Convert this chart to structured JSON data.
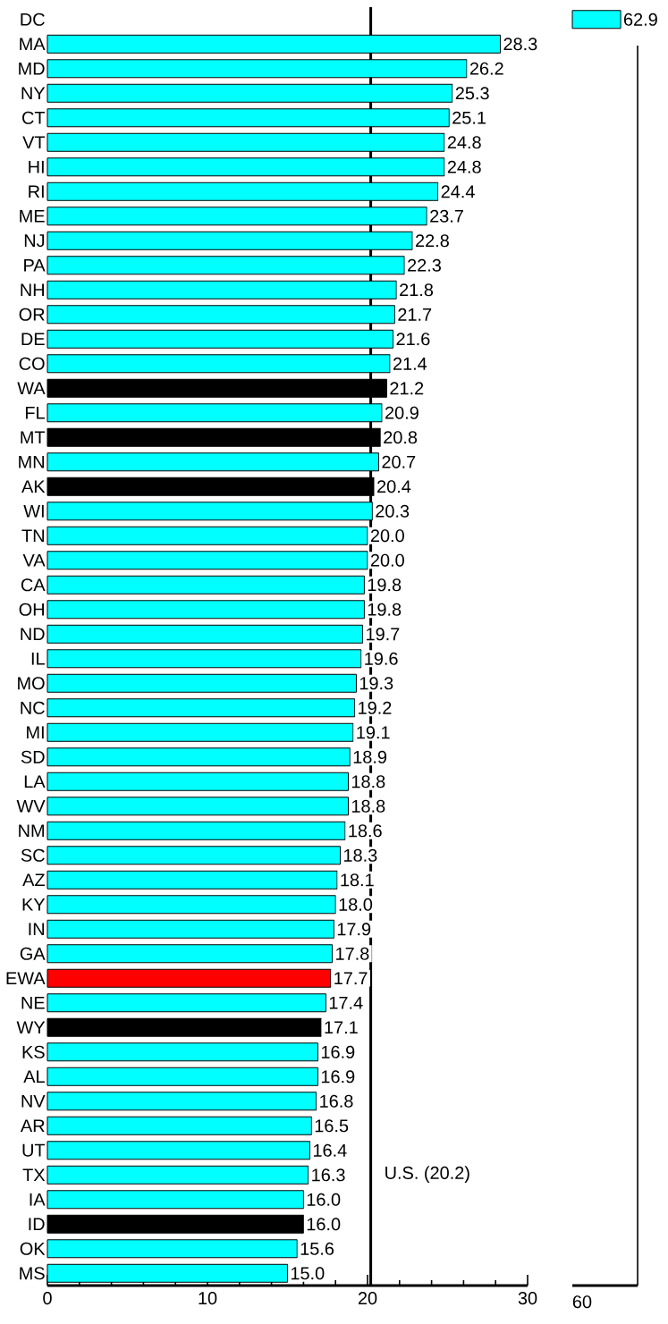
{
  "chart_data": [
    {
      "type": "bar",
      "orientation": "horizontal",
      "categories": [
        "DC",
        "MA",
        "MD",
        "NY",
        "CT",
        "VT",
        "HI",
        "RI",
        "ME",
        "NJ",
        "PA",
        "NH",
        "OR",
        "DE",
        "CO",
        "WA",
        "FL",
        "MT",
        "MN",
        "AK",
        "WI",
        "TN",
        "VA",
        "CA",
        "OH",
        "ND",
        "IL",
        "MO",
        "NC",
        "MI",
        "SD",
        "LA",
        "WV",
        "NM",
        "SC",
        "AZ",
        "KY",
        "IN",
        "GA",
        "EWA",
        "NE",
        "WY",
        "KS",
        "AL",
        "NV",
        "AR",
        "UT",
        "TX",
        "IA",
        "ID",
        "OK",
        "MS"
      ],
      "values": [
        null,
        28.3,
        26.2,
        25.3,
        25.1,
        24.8,
        24.8,
        24.4,
        23.7,
        22.8,
        22.3,
        21.8,
        21.7,
        21.6,
        21.4,
        21.2,
        20.9,
        20.8,
        20.7,
        20.4,
        20.3,
        20.0,
        20.0,
        19.8,
        19.8,
        19.7,
        19.6,
        19.3,
        19.2,
        19.1,
        18.9,
        18.8,
        18.8,
        18.6,
        18.3,
        18.1,
        18.0,
        17.9,
        17.8,
        17.7,
        17.4,
        17.1,
        16.9,
        16.9,
        16.8,
        16.5,
        16.4,
        16.3,
        16.0,
        16.0,
        15.6,
        15.0
      ],
      "value_labels": [
        null,
        "28.3",
        "26.2",
        "25.3",
        "25.1",
        "24.8",
        "24.8",
        "24.4",
        "23.7",
        "22.8",
        "22.3",
        "21.8",
        "21.7",
        "21.6",
        "21.4",
        "21.2",
        "20.9",
        "20.8",
        "20.7",
        "20.4",
        "20.3",
        "20.0",
        "20.0",
        "19.8",
        "19.8",
        "19.7",
        "19.6",
        "19.3",
        "19.2",
        "19.1",
        "18.9",
        "18.8",
        "18.8",
        "18.6",
        "18.3",
        "18.1",
        "18.0",
        "17.9",
        "17.8",
        "17.7",
        "17.4",
        "17.1",
        "16.9",
        "16.9",
        "16.8",
        "16.5",
        "16.4",
        "16.3",
        "16.0",
        "16.0",
        "15.6",
        "15.0"
      ],
      "colors": [
        "#00ffff",
        "#00ffff",
        "#00ffff",
        "#00ffff",
        "#00ffff",
        "#00ffff",
        "#00ffff",
        "#00ffff",
        "#00ffff",
        "#00ffff",
        "#00ffff",
        "#00ffff",
        "#00ffff",
        "#00ffff",
        "#00ffff",
        "#000000",
        "#00ffff",
        "#000000",
        "#00ffff",
        "#000000",
        "#00ffff",
        "#00ffff",
        "#00ffff",
        "#00ffff",
        "#00ffff",
        "#00ffff",
        "#00ffff",
        "#00ffff",
        "#00ffff",
        "#00ffff",
        "#00ffff",
        "#00ffff",
        "#00ffff",
        "#00ffff",
        "#00ffff",
        "#00ffff",
        "#00ffff",
        "#00ffff",
        "#00ffff",
        "#ff0000",
        "#00ffff",
        "#000000",
        "#00ffff",
        "#00ffff",
        "#00ffff",
        "#00ffff",
        "#00ffff",
        "#00ffff",
        "#00ffff",
        "#000000",
        "#00ffff",
        "#00ffff"
      ],
      "xlim": [
        0,
        30
      ],
      "xticks": [
        0,
        10,
        20,
        30
      ],
      "ref_lines": [
        {
          "axis": "x",
          "value": 20.2,
          "label": "U.S. (20.2)"
        }
      ]
    },
    {
      "type": "bar",
      "orientation": "horizontal",
      "data_labels": true,
      "categories": [
        null,
        null,
        null,
        null,
        null,
        null,
        null,
        null,
        null,
        null,
        null,
        null,
        null,
        null,
        null,
        null,
        null,
        null,
        null,
        null,
        null,
        null,
        null,
        null,
        null,
        null,
        null,
        null,
        null,
        null,
        null,
        null,
        null,
        null,
        null,
        null,
        null,
        null,
        null,
        null,
        null,
        null,
        null,
        null,
        null,
        null,
        null,
        null,
        null,
        null,
        null,
        null
      ],
      "values": [
        62.9,
        null,
        null,
        null,
        null,
        null,
        null,
        null,
        null,
        null,
        null,
        null,
        null,
        null,
        null,
        null,
        null,
        null,
        null,
        null,
        null,
        null,
        null,
        null,
        null,
        null,
        null,
        null,
        null,
        null,
        null,
        null,
        null,
        null,
        null,
        null,
        null,
        null,
        null,
        null,
        null,
        null,
        null,
        null,
        null,
        null,
        null,
        null,
        null,
        null,
        null,
        null
      ],
      "color": "#00ffff",
      "annotations": [
        "60"
      ]
    }
  ]
}
